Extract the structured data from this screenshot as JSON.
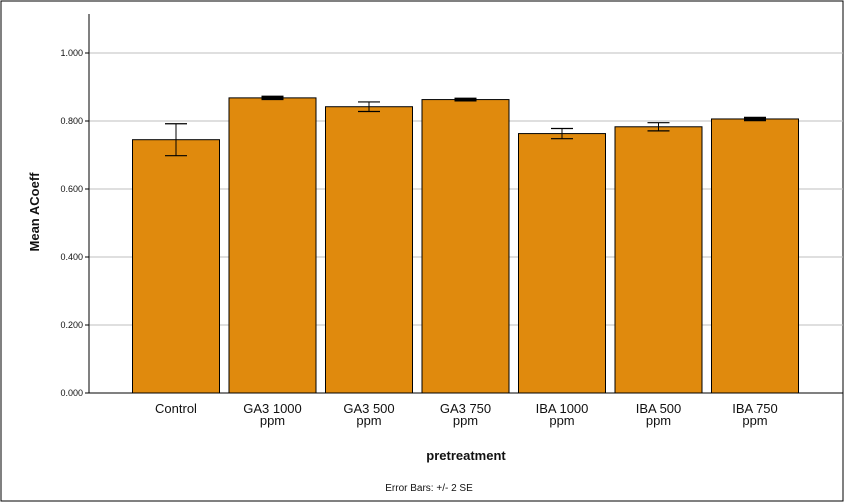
{
  "chart_data": {
    "type": "bar",
    "title": "",
    "xlabel": "pretreatment",
    "ylabel": "Mean ACoeff",
    "ylim": [
      0,
      1.1
    ],
    "yticks": [
      "0.000",
      "0.200",
      "0.400",
      "0.600",
      "0.800",
      "1.000"
    ],
    "ytick_values": [
      0,
      0.2,
      0.4,
      0.6,
      0.8,
      1.0
    ],
    "grid": true,
    "categories": [
      [
        "Control"
      ],
      [
        "GA3 1000",
        "ppm"
      ],
      [
        "GA3 500",
        "ppm"
      ],
      [
        "GA3 750",
        "ppm"
      ],
      [
        "IBA 1000",
        "ppm"
      ],
      [
        "IBA 500",
        "ppm"
      ],
      [
        "IBA 750",
        "ppm"
      ]
    ],
    "values": [
      0.745,
      0.868,
      0.842,
      0.863,
      0.763,
      0.783,
      0.806
    ],
    "error_low": [
      0.698,
      0.865,
      0.828,
      0.861,
      0.748,
      0.771,
      0.803
    ],
    "error_high": [
      0.792,
      0.871,
      0.856,
      0.865,
      0.778,
      0.795,
      0.809
    ],
    "error_note": "Error Bars: +/- 2 SE",
    "bar_color": "#E08A0D",
    "edge_color": "#000000",
    "grid_color": "#BFBFBF"
  }
}
